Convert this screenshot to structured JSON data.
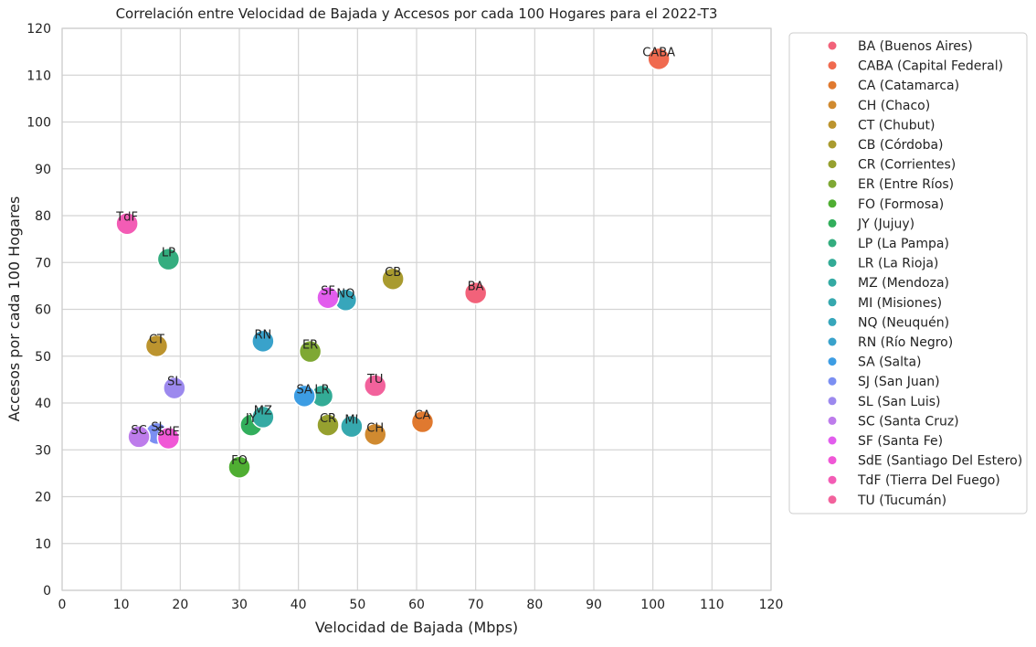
{
  "chart_data": {
    "type": "scatter",
    "title": "Correlación entre Velocidad de Bajada y Accesos por cada 100 Hogares para el 2022-T3",
    "xlabel": "Velocidad de Bajada (Mbps)",
    "ylabel": "Accesos por cada 100 Hogares",
    "xlim": [
      0,
      120
    ],
    "ylim": [
      0,
      120
    ],
    "xticks": [
      0,
      10,
      20,
      30,
      40,
      50,
      60,
      70,
      80,
      90,
      100,
      110,
      120
    ],
    "yticks": [
      0,
      10,
      20,
      30,
      40,
      50,
      60,
      70,
      80,
      90,
      100,
      110,
      120
    ],
    "grid": true,
    "legend_position": "outside-right",
    "points": [
      {
        "code": "BA",
        "legend": "BA (Buenos Aires)",
        "x": 70,
        "y": 63.5,
        "color": "#f2627a"
      },
      {
        "code": "CABA",
        "legend": "CABA (Capital Federal)",
        "x": 101,
        "y": 113.5,
        "color": "#f06a4f"
      },
      {
        "code": "CA",
        "legend": "CA (Catamarca)",
        "x": 61,
        "y": 36,
        "color": "#e0792f"
      },
      {
        "code": "CH",
        "legend": "CH (Chaco)",
        "x": 53,
        "y": 33.3,
        "color": "#d08a30"
      },
      {
        "code": "CT",
        "legend": "CT (Chubut)",
        "x": 16,
        "y": 52.2,
        "color": "#bc942e"
      },
      {
        "code": "CB",
        "legend": "CB (Córdoba)",
        "x": 56,
        "y": 66.5,
        "color": "#a99b2f"
      },
      {
        "code": "CR",
        "legend": "CR (Corrientes)",
        "x": 45,
        "y": 35.3,
        "color": "#96a02f"
      },
      {
        "code": "ER",
        "legend": "ER (Entre Ríos)",
        "x": 42,
        "y": 51,
        "color": "#7fa834"
      },
      {
        "code": "FO",
        "legend": "FO (Formosa)",
        "x": 30,
        "y": 26.3,
        "color": "#4fae32"
      },
      {
        "code": "JY",
        "legend": "JY (Jujuy)",
        "x": 32,
        "y": 35.3,
        "color": "#32ae5c"
      },
      {
        "code": "LP",
        "legend": "LP (La Pampa)",
        "x": 18,
        "y": 70.7,
        "color": "#34ad7f"
      },
      {
        "code": "LR",
        "legend": "LR (La Rioja)",
        "x": 44,
        "y": 41.5,
        "color": "#33ab96"
      },
      {
        "code": "MZ",
        "legend": "MZ (Mendoza)",
        "x": 34,
        "y": 37,
        "color": "#34aaa3"
      },
      {
        "code": "MI",
        "legend": "MI (Misiones)",
        "x": 49,
        "y": 35,
        "color": "#36a8ae"
      },
      {
        "code": "NQ",
        "legend": "NQ (Neuquén)",
        "x": 48,
        "y": 62,
        "color": "#37a6bb"
      },
      {
        "code": "RN",
        "legend": "RN (Río Negro)",
        "x": 34,
        "y": 53.2,
        "color": "#39a2cb"
      },
      {
        "code": "SA",
        "legend": "SA (Salta)",
        "x": 41,
        "y": 41.5,
        "color": "#3d9de3"
      },
      {
        "code": "SJ",
        "legend": "SJ (San Juan)",
        "x": 16,
        "y": 33.5,
        "color": "#7b8ff2"
      },
      {
        "code": "SL",
        "legend": "SL (San Luis)",
        "x": 19,
        "y": 43.2,
        "color": "#9c89ee"
      },
      {
        "code": "SC",
        "legend": "SC (Santa Cruz)",
        "x": 13,
        "y": 32.8,
        "color": "#bd7ceb"
      },
      {
        "code": "SF",
        "legend": "SF (Santa Fe)",
        "x": 45,
        "y": 62.5,
        "color": "#e25ded"
      },
      {
        "code": "SdE",
        "legend": "SdE (Santiago Del Estero)",
        "x": 18,
        "y": 32.5,
        "color": "#f057d6"
      },
      {
        "code": "TdF",
        "legend": "TdF (Tierra Del Fuego)",
        "x": 11,
        "y": 78.3,
        "color": "#f35cb5"
      },
      {
        "code": "TU",
        "legend": "TU (Tucumán)",
        "x": 53,
        "y": 43.7,
        "color": "#f2629c"
      }
    ]
  }
}
